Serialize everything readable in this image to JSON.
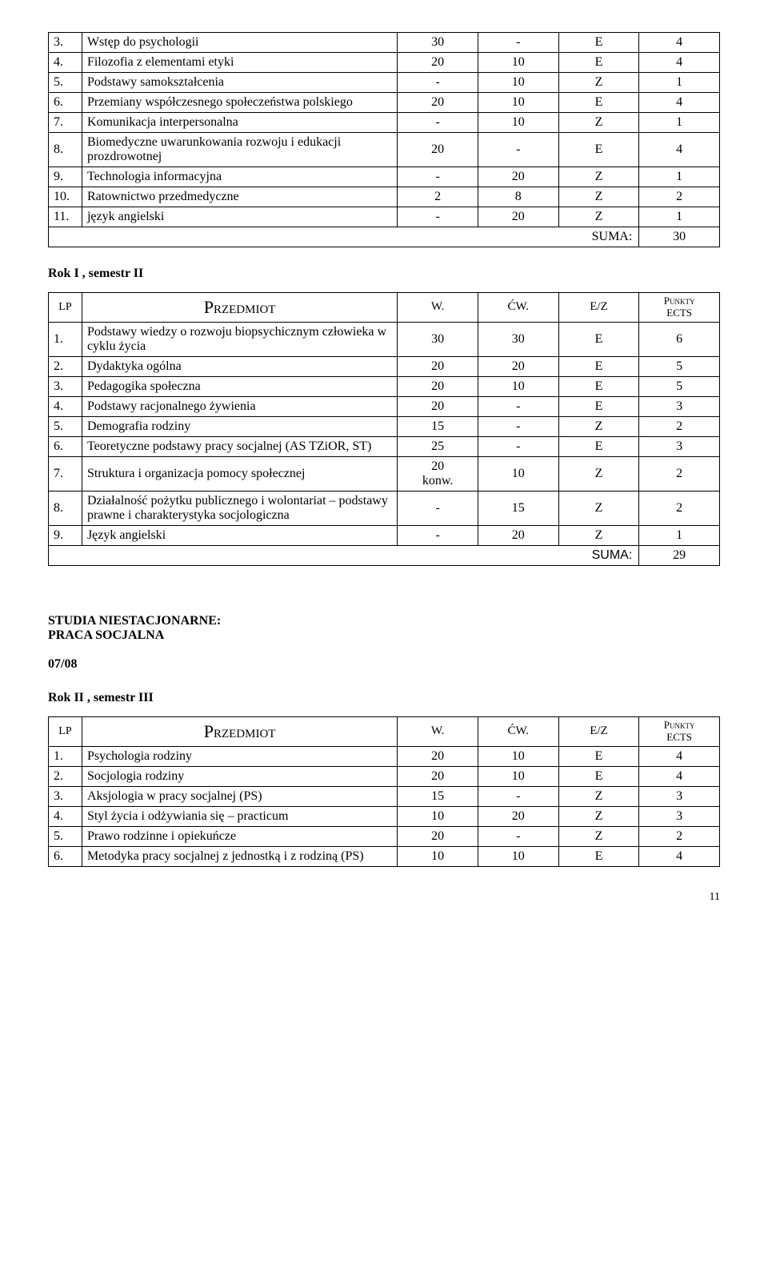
{
  "table1": {
    "rows": [
      {
        "num": "3.",
        "name": "Wstęp do psychologii",
        "w": "30",
        "cw": "-",
        "ez": "E",
        "pkt": "4"
      },
      {
        "num": "4.",
        "name": "Filozofia z elementami etyki",
        "w": "20",
        "cw": "10",
        "ez": "E",
        "pkt": "4"
      },
      {
        "num": "5.",
        "name": "Podstawy samokształcenia",
        "w": "-",
        "cw": "10",
        "ez": "Z",
        "pkt": "1"
      },
      {
        "num": "6.",
        "name": "Przemiany współczesnego społeczeństwa polskiego",
        "w": "20",
        "cw": "10",
        "ez": "E",
        "pkt": "4"
      },
      {
        "num": "7.",
        "name": "Komunikacja interpersonalna",
        "w": "-",
        "cw": "10",
        "ez": "Z",
        "pkt": "1"
      },
      {
        "num": "8.",
        "name": "Biomedyczne uwarunkowania rozwoju i edukacji prozdrowotnej",
        "w": "20",
        "cw": "-",
        "ez": "E",
        "pkt": "4"
      },
      {
        "num": "9.",
        "name": "Technologia informacyjna",
        "w": "-",
        "cw": "20",
        "ez": "Z",
        "pkt": "1"
      },
      {
        "num": "10.",
        "name": "Ratownictwo przedmedyczne",
        "w": "2",
        "cw": "8",
        "ez": "Z",
        "pkt": "2"
      },
      {
        "num": "11.",
        "name": "język angielski",
        "w": "-",
        "cw": "20",
        "ez": "Z",
        "pkt": "1"
      }
    ],
    "suma_label": "SUMA:",
    "suma_value": "30"
  },
  "sec2_title": "Rok I , semestr II",
  "hdr": {
    "lp": "LP",
    "prz": "Przedmiot",
    "w": "W.",
    "cw": "ĆW.",
    "ez": "E/Z",
    "pkt_l1": "Punkty",
    "pkt_l2": "ECTS"
  },
  "table2": {
    "rows": [
      {
        "num": "1.",
        "name": "Podstawy wiedzy o rozwoju biopsychicznym człowieka w cyklu życia",
        "w": "30",
        "cw": "30",
        "ez": "E",
        "pkt": "6"
      },
      {
        "num": "2.",
        "name": "Dydaktyka ogólna",
        "w": "20",
        "cw": "20",
        "ez": "E",
        "pkt": "5"
      },
      {
        "num": "3.",
        "name": "Pedagogika społeczna",
        "w": "20",
        "cw": "10",
        "ez": "E",
        "pkt": "5"
      },
      {
        "num": "4.",
        "name": "Podstawy racjonalnego żywienia",
        "w": "20",
        "cw": "-",
        "ez": "E",
        "pkt": "3"
      },
      {
        "num": "5.",
        "name": "Demografia rodziny",
        "w": "15",
        "cw": "-",
        "ez": "Z",
        "pkt": "2"
      },
      {
        "num": "6.",
        "name": "Teoretyczne podstawy pracy socjalnej (AS TZiOR, ST)",
        "w": "25",
        "cw": "-",
        "ez": "E",
        "pkt": "3"
      },
      {
        "num": "7.",
        "name": "Struktura i organizacja pomocy społecznej",
        "w": "20\nkonw.",
        "cw": "10",
        "ez": "Z",
        "pkt": "2"
      },
      {
        "num": "8.",
        "name": "Działalność pożytku publicznego i wolontariat – podstawy prawne i charakterystyka socjologiczna",
        "w": "-",
        "cw": "15",
        "ez": "Z",
        "pkt": "2"
      },
      {
        "num": "9.",
        "name": "Język angielski",
        "w": "-",
        "cw": "20",
        "ez": "Z",
        "pkt": "1"
      }
    ],
    "suma_label": "SUMA:",
    "suma_value": "29"
  },
  "studia_l1": "STUDIA NIESTACJONARNE:",
  "studia_l2": "PRACA SOCJALNA",
  "year": "07/08",
  "sec3_title": "Rok II , semestr III",
  "table3": {
    "rows": [
      {
        "num": "1.",
        "name": "Psychologia rodziny",
        "w": "20",
        "cw": "10",
        "ez": "E",
        "pkt": "4"
      },
      {
        "num": "2.",
        "name": "Socjologia rodziny",
        "w": "20",
        "cw": "10",
        "ez": "E",
        "pkt": "4"
      },
      {
        "num": "3.",
        "name": "Aksjologia w pracy socjalnej (PS)",
        "w": "15",
        "cw": "-",
        "ez": "Z",
        "pkt": "3"
      },
      {
        "num": "4.",
        "name": "Styl życia i odżywiania się – practicum",
        "w": "10",
        "cw": "20",
        "ez": "Z",
        "pkt": "3"
      },
      {
        "num": "5.",
        "name": "Prawo rodzinne i opiekuńcze",
        "w": "20",
        "cw": "-",
        "ez": "Z",
        "pkt": "2"
      },
      {
        "num": "6.",
        "name": "Metodyka pracy socjalnej z jednostką i z rodziną (PS)",
        "w": "10",
        "cw": "10",
        "ez": "E",
        "pkt": "4"
      }
    ]
  },
  "page_number": "11"
}
